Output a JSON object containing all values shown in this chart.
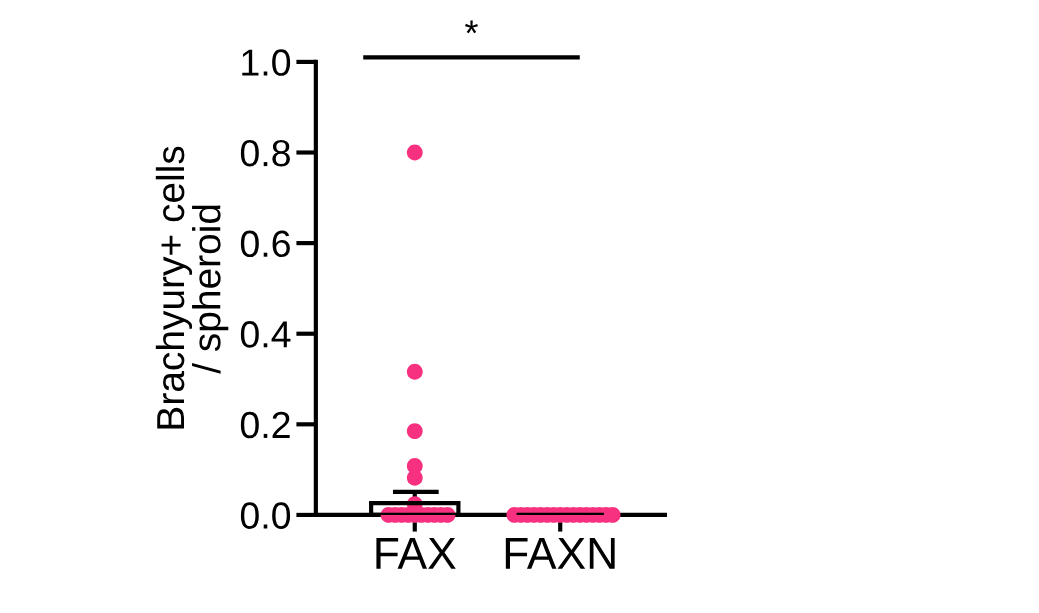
{
  "chart_data": {
    "type": "bar",
    "ylabel": "Brachyury+ cells\n/ spheroid",
    "categories": [
      "FAX",
      "FAXN"
    ],
    "ylim": [
      0,
      1.0
    ],
    "yticks": [
      {
        "value": 0,
        "label": "0.0"
      },
      0.2,
      0.4,
      0.6,
      0.8,
      {
        "value": 1.0,
        "label": "1.0"
      }
    ],
    "series": [
      {
        "color": "#000000",
        "values": [
          0.026,
          0
        ],
        "errors": [
          [
            0.026,
            0.051
          ],
          null
        ]
      },
      {
        "type": "scatter",
        "color": "#f7317f",
        "x": [
          "FAX",
          "FAX",
          "FAX",
          "FAX",
          "FAX",
          "FAX",
          "FAX",
          "FAX",
          "FAX",
          "FAX",
          "FAX",
          "FAX",
          "FAX",
          "FAX",
          "FAX",
          "FAX",
          "FAXN",
          "FAXN",
          "FAXN",
          "FAXN",
          "FAXN",
          "FAXN",
          "FAXN",
          "FAXN",
          "FAXN",
          "FAXN",
          "FAXN",
          "FAXN",
          "FAXN",
          "FAXN",
          "FAXN",
          "FAXN"
        ],
        "values": [
          0.8,
          0.316,
          0.185,
          0.108,
          0.082,
          0.024,
          0,
          0,
          0,
          0,
          0,
          0,
          0,
          0,
          0,
          0,
          0,
          0,
          0,
          0,
          0,
          0,
          0,
          0,
          0,
          0,
          0,
          0,
          0,
          0,
          0,
          0
        ]
      }
    ],
    "annotations": [
      "*"
    ],
    "grid": false,
    "legend": false
  }
}
